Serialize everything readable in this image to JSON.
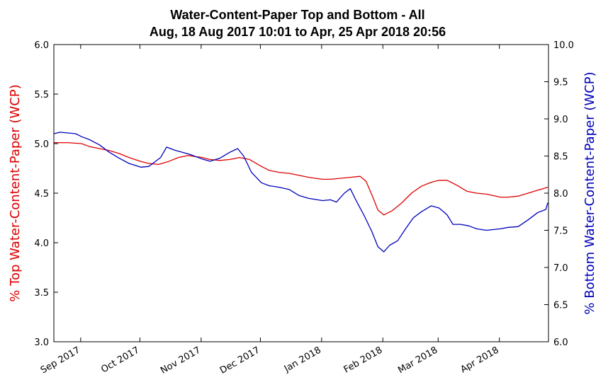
{
  "chart_data": {
    "type": "line",
    "title": "Water-Content-Paper Top and Bottom - All",
    "subtitle": "Aug, 18 Aug 2017 10:01 to Apr, 25 Apr 2018 20:56",
    "y_left_label": "% Top Water-Content-Paper (WCP)",
    "y_right_label": "% Bottom Water-Content-Paper (WCP)",
    "y_left_color": "#dd0000",
    "y_right_color": "#0000bb",
    "x_range": [
      "2017-08-18",
      "2018-04-25"
    ],
    "ylim_left": [
      3.0,
      6.0
    ],
    "ylim_right": [
      6.0,
      10.0
    ],
    "y_left_ticks": [
      "3.0",
      "3.5",
      "4.0",
      "4.5",
      "5.0",
      "5.5",
      "6.0"
    ],
    "y_right_ticks": [
      "6.0",
      "6.5",
      "7.0",
      "7.5",
      "8.0",
      "8.5",
      "9.0",
      "9.5",
      "10.0"
    ],
    "x_ticks": [
      {
        "date": "2017-09-01",
        "label": "Sep 2017"
      },
      {
        "date": "2017-10-01",
        "label": "Oct 2017"
      },
      {
        "date": "2017-11-01",
        "label": "Nov 2017"
      },
      {
        "date": "2017-12-01",
        "label": "Dec 2017"
      },
      {
        "date": "2018-01-01",
        "label": "Jan 2018"
      },
      {
        "date": "2018-02-01",
        "label": "Feb 2018"
      },
      {
        "date": "2018-03-01",
        "label": "Mar 2018"
      },
      {
        "date": "2018-04-01",
        "label": "Apr 2018"
      }
    ],
    "grid": false,
    "legend": "none",
    "series": [
      {
        "axis": "left",
        "color": "#dd0000",
        "points": [
          [
            "2017-08-18",
            5.01
          ],
          [
            "2017-08-25",
            5.01
          ],
          [
            "2017-09-01",
            5.0
          ],
          [
            "2017-09-05",
            4.97
          ],
          [
            "2017-09-10",
            4.95
          ],
          [
            "2017-09-15",
            4.93
          ],
          [
            "2017-09-20",
            4.9
          ],
          [
            "2017-09-25",
            4.86
          ],
          [
            "2017-10-01",
            4.82
          ],
          [
            "2017-10-05",
            4.8
          ],
          [
            "2017-10-10",
            4.79
          ],
          [
            "2017-10-15",
            4.82
          ],
          [
            "2017-10-20",
            4.86
          ],
          [
            "2017-10-25",
            4.88
          ],
          [
            "2017-11-01",
            4.86
          ],
          [
            "2017-11-05",
            4.84
          ],
          [
            "2017-11-10",
            4.83
          ],
          [
            "2017-11-15",
            4.84
          ],
          [
            "2017-11-20",
            4.86
          ],
          [
            "2017-11-25",
            4.84
          ],
          [
            "2017-12-01",
            4.77
          ],
          [
            "2017-12-05",
            4.73
          ],
          [
            "2017-12-10",
            4.71
          ],
          [
            "2017-12-15",
            4.7
          ],
          [
            "2017-12-20",
            4.68
          ],
          [
            "2017-12-25",
            4.66
          ],
          [
            "2018-01-01",
            4.64
          ],
          [
            "2018-01-05",
            4.64
          ],
          [
            "2018-01-10",
            4.65
          ],
          [
            "2018-01-15",
            4.66
          ],
          [
            "2018-01-20",
            4.67
          ],
          [
            "2018-01-23",
            4.62
          ],
          [
            "2018-01-26",
            4.48
          ],
          [
            "2018-01-29",
            4.33
          ],
          [
            "2018-02-01",
            4.28
          ],
          [
            "2018-02-05",
            4.32
          ],
          [
            "2018-02-10",
            4.4
          ],
          [
            "2018-02-15",
            4.5
          ],
          [
            "2018-02-20",
            4.57
          ],
          [
            "2018-02-25",
            4.61
          ],
          [
            "2018-03-01",
            4.63
          ],
          [
            "2018-03-05",
            4.63
          ],
          [
            "2018-03-10",
            4.58
          ],
          [
            "2018-03-15",
            4.52
          ],
          [
            "2018-03-20",
            4.5
          ],
          [
            "2018-03-25",
            4.49
          ],
          [
            "2018-04-01",
            4.46
          ],
          [
            "2018-04-05",
            4.46
          ],
          [
            "2018-04-10",
            4.47
          ],
          [
            "2018-04-15",
            4.5
          ],
          [
            "2018-04-20",
            4.53
          ],
          [
            "2018-04-25",
            4.56
          ]
        ]
      },
      {
        "axis": "right",
        "color": "#0000bb",
        "points": [
          [
            "2017-08-18",
            8.8
          ],
          [
            "2017-08-21",
            8.82
          ],
          [
            "2017-08-25",
            8.81
          ],
          [
            "2017-08-29",
            8.8
          ],
          [
            "2017-09-01",
            8.76
          ],
          [
            "2017-09-05",
            8.72
          ],
          [
            "2017-09-10",
            8.65
          ],
          [
            "2017-09-15",
            8.55
          ],
          [
            "2017-09-20",
            8.47
          ],
          [
            "2017-09-25",
            8.4
          ],
          [
            "2017-10-01",
            8.35
          ],
          [
            "2017-10-05",
            8.36
          ],
          [
            "2017-10-08",
            8.42
          ],
          [
            "2017-10-11",
            8.48
          ],
          [
            "2017-10-14",
            8.62
          ],
          [
            "2017-10-18",
            8.58
          ],
          [
            "2017-10-22",
            8.55
          ],
          [
            "2017-10-26",
            8.52
          ],
          [
            "2017-11-01",
            8.46
          ],
          [
            "2017-11-05",
            8.43
          ],
          [
            "2017-11-10",
            8.47
          ],
          [
            "2017-11-15",
            8.55
          ],
          [
            "2017-11-19",
            8.6
          ],
          [
            "2017-11-22",
            8.5
          ],
          [
            "2017-11-26",
            8.28
          ],
          [
            "2017-12-01",
            8.14
          ],
          [
            "2017-12-05",
            8.1
          ],
          [
            "2017-12-10",
            8.08
          ],
          [
            "2017-12-15",
            8.05
          ],
          [
            "2017-12-20",
            7.97
          ],
          [
            "2017-12-25",
            7.93
          ],
          [
            "2018-01-01",
            7.9
          ],
          [
            "2018-01-05",
            7.91
          ],
          [
            "2018-01-08",
            7.88
          ],
          [
            "2018-01-12",
            8.0
          ],
          [
            "2018-01-15",
            8.06
          ],
          [
            "2018-01-18",
            7.9
          ],
          [
            "2018-01-22",
            7.7
          ],
          [
            "2018-01-26",
            7.48
          ],
          [
            "2018-01-29",
            7.28
          ],
          [
            "2018-02-01",
            7.21
          ],
          [
            "2018-02-04",
            7.3
          ],
          [
            "2018-02-08",
            7.36
          ],
          [
            "2018-02-12",
            7.52
          ],
          [
            "2018-02-16",
            7.67
          ],
          [
            "2018-02-20",
            7.75
          ],
          [
            "2018-02-25",
            7.83
          ],
          [
            "2018-03-01",
            7.8
          ],
          [
            "2018-03-05",
            7.71
          ],
          [
            "2018-03-08",
            7.58
          ],
          [
            "2018-03-12",
            7.58
          ],
          [
            "2018-03-16",
            7.56
          ],
          [
            "2018-03-20",
            7.52
          ],
          [
            "2018-03-25",
            7.5
          ],
          [
            "2018-04-01",
            7.52
          ],
          [
            "2018-04-05",
            7.54
          ],
          [
            "2018-04-10",
            7.55
          ],
          [
            "2018-04-15",
            7.64
          ],
          [
            "2018-04-20",
            7.74
          ],
          [
            "2018-04-24",
            7.78
          ],
          [
            "2018-04-25",
            7.87
          ]
        ]
      }
    ]
  }
}
